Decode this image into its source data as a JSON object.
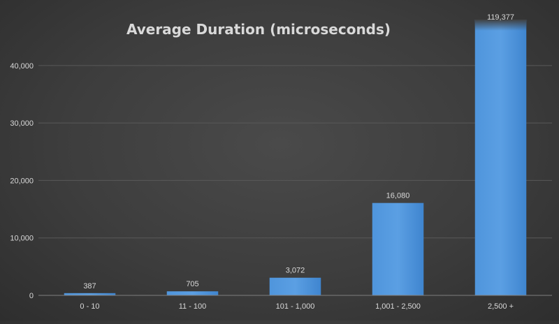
{
  "chart_data": {
    "type": "bar",
    "title": "Average Duration (microseconds)",
    "xlabel": "",
    "ylabel": "",
    "categories": [
      "0 - 10",
      "11 - 100",
      "101 - 1,000",
      "1,001 - 2,500",
      "2,500 +"
    ],
    "values": [
      387,
      705,
      3072,
      16080,
      119377
    ],
    "data_labels": [
      "387",
      "705",
      "3,072",
      "16,080",
      "119,377"
    ],
    "ylim": [
      0,
      48000
    ],
    "yticks": [
      0,
      10000,
      20000,
      30000,
      40000
    ],
    "ytick_labels": [
      "0",
      "10,000",
      "20,000",
      "30,000",
      "40,000"
    ],
    "grid": true,
    "legend": "none",
    "bar_color": "#4a90d9",
    "background": "#404040",
    "note": ""
  }
}
